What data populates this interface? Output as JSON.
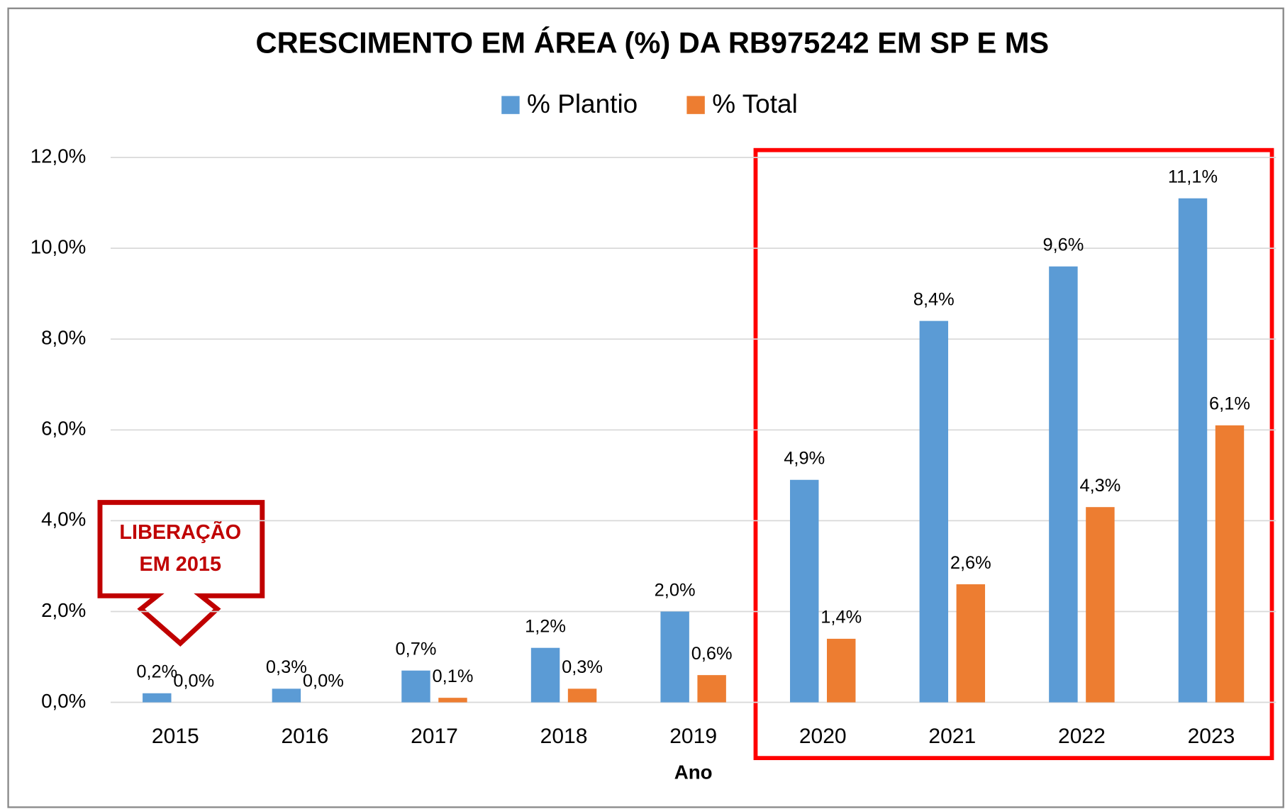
{
  "chart_data": {
    "type": "bar",
    "title": "CRESCIMENTO EM ÁREA (%) DA RB975242 EM SP E MS",
    "x_label": "Ano",
    "annotation": [
      "LIBERAÇÃO",
      "EM 2015"
    ],
    "categories": [
      "2015",
      "2016",
      "2017",
      "2018",
      "2019",
      "2020",
      "2021",
      "2022",
      "2023"
    ],
    "series": [
      {
        "name": "% Plantio",
        "color": "#5b9bd5",
        "values": [
          0.2,
          0.3,
          0.7,
          1.2,
          2.0,
          4.9,
          8.4,
          9.6,
          11.1
        ],
        "value_labels": [
          "0,2%",
          "0,3%",
          "0,7%",
          "1,2%",
          "2,0%",
          "4,9%",
          "8,4%",
          "9,6%",
          "11,1%"
        ]
      },
      {
        "name": "% Total",
        "color": "#ed7d31",
        "values": [
          0.0,
          0.0,
          0.1,
          0.3,
          0.6,
          1.4,
          2.6,
          4.3,
          6.1
        ],
        "value_labels": [
          "0,0%",
          "0,0%",
          "0,1%",
          "0,3%",
          "0,6%",
          "1,4%",
          "2,6%",
          "4,3%",
          "6,1%"
        ]
      }
    ],
    "ylim": [
      0,
      12
    ],
    "yticks": [
      {
        "value": 0,
        "label": "0,0%"
      },
      {
        "value": 2,
        "label": "2,0%"
      },
      {
        "value": 4,
        "label": "4,0%"
      },
      {
        "value": 6,
        "label": "6,0%"
      },
      {
        "value": 8,
        "label": "8,0%"
      },
      {
        "value": 10,
        "label": "10,0%"
      },
      {
        "value": 12,
        "label": "12,0%"
      }
    ],
    "grid": true,
    "legend": "top"
  }
}
